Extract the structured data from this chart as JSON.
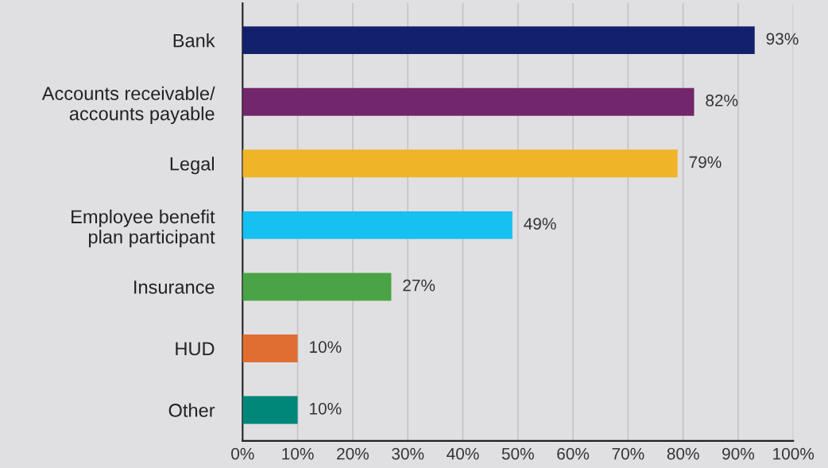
{
  "chart_data": {
    "type": "bar",
    "orientation": "horizontal",
    "categories": [
      "Bank",
      "Accounts receivable/\naccounts payable",
      "Legal",
      "Employee benefit\nplan participant",
      "Insurance",
      "HUD",
      "Other"
    ],
    "values": [
      93,
      82,
      79,
      49,
      27,
      10,
      10
    ],
    "colors": [
      "#13206b",
      "#72266b",
      "#f0b429",
      "#16c0f0",
      "#4aa345",
      "#e06e30",
      "#00877a"
    ],
    "value_labels": [
      "93%",
      "82%",
      "79%",
      "49%",
      "27%",
      "10%",
      "10%"
    ],
    "xlim": [
      0,
      100
    ],
    "xticks": [
      {
        "value": 0,
        "label": "0%"
      },
      {
        "value": 10,
        "label": "10%"
      },
      {
        "value": 20,
        "label": "20%"
      },
      {
        "value": 30,
        "label": "30%"
      },
      {
        "value": 40,
        "label": "40%"
      },
      {
        "value": 50,
        "label": "50%"
      },
      {
        "value": 60,
        "label": "60%"
      },
      {
        "value": 70,
        "label": "70%"
      },
      {
        "value": 80,
        "label": "80%"
      },
      {
        "value": 90,
        "label": "90%"
      },
      {
        "value": 100,
        "label": "100%"
      }
    ],
    "grid": "x"
  }
}
